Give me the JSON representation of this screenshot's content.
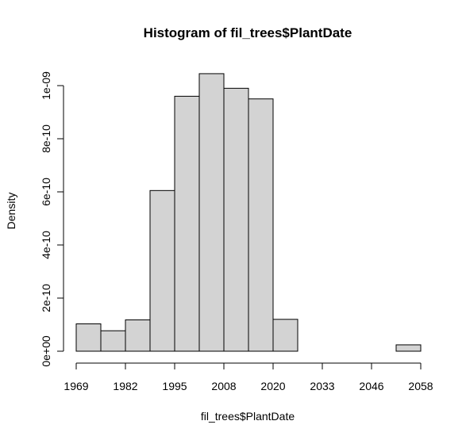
{
  "chart_data": {
    "type": "bar",
    "title": "Histogram of fil_trees$PlantDate",
    "xlabel": "fil_trees$PlantDate",
    "ylabel": "Density",
    "x_ticks": [
      "1969",
      "1982",
      "1995",
      "2008",
      "2020",
      "2033",
      "2046",
      "2058"
    ],
    "y_ticks": [
      "0e+00",
      "2e-10",
      "4e-10",
      "6e-10",
      "8e-10",
      "1e-09"
    ],
    "y_tick_values": [
      0,
      2e-10,
      4e-10,
      6e-10,
      8e-10,
      1e-09
    ],
    "ylim": [
      0,
      1.05e-09
    ],
    "bins": [
      {
        "start": 1969,
        "end": 1975,
        "density": 1.03e-10
      },
      {
        "start": 1975,
        "end": 1982,
        "density": 7.7e-11
      },
      {
        "start": 1982,
        "end": 1988,
        "density": 1.18e-10
      },
      {
        "start": 1988,
        "end": 1995,
        "density": 6.05e-10
      },
      {
        "start": 1995,
        "end": 2001,
        "density": 9.6e-10
      },
      {
        "start": 2001,
        "end": 2008,
        "density": 1.045e-09
      },
      {
        "start": 2008,
        "end": 2014,
        "density": 9.9e-10
      },
      {
        "start": 2014,
        "end": 2020,
        "density": 9.5e-10
      },
      {
        "start": 2020,
        "end": 2027,
        "density": 1.2e-10
      },
      {
        "start": 2027,
        "end": 2033,
        "density": 0
      },
      {
        "start": 2033,
        "end": 2040,
        "density": 0
      },
      {
        "start": 2040,
        "end": 2046,
        "density": 0
      },
      {
        "start": 2046,
        "end": 2052,
        "density": 0
      },
      {
        "start": 2052,
        "end": 2058,
        "density": 2.4e-11
      }
    ],
    "colors": {
      "bar_fill": "#d3d3d3",
      "bar_stroke": "#000000"
    }
  }
}
